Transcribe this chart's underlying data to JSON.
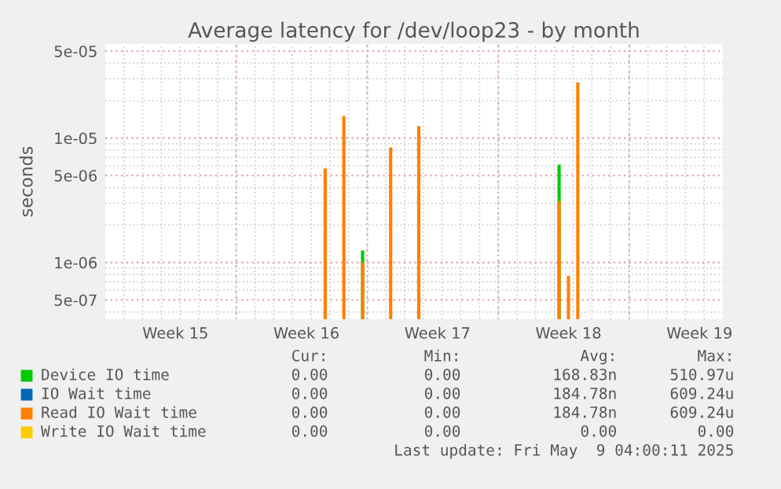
{
  "chart_data": {
    "type": "bar",
    "title": "Average latency for /dev/loop23 - by month",
    "ylabel": "seconds",
    "categories": [
      null,
      null,
      null,
      null,
      null,
      null,
      null,
      "Week 15",
      null,
      null,
      null,
      null,
      null,
      null,
      null,
      null,
      null,
      null,
      null,
      null,
      null,
      "Week 16",
      null,
      null,
      null,
      null,
      null,
      null,
      null,
      null,
      null,
      null,
      null,
      null,
      null,
      "Week 17",
      null,
      null,
      null,
      null,
      null,
      null,
      null,
      null,
      null,
      null,
      null,
      null,
      null,
      "Week 18",
      null,
      null,
      null,
      null,
      null,
      null,
      null,
      null,
      null,
      null,
      null,
      null,
      null,
      "Week 19",
      null,
      null
    ],
    "series": [
      {
        "name": "Device IO time",
        "color": "#00cc00",
        "values": [
          null,
          null,
          null,
          null,
          null,
          null,
          null,
          null,
          null,
          null,
          null,
          null,
          null,
          null,
          null,
          null,
          null,
          null,
          null,
          null,
          null,
          null,
          null,
          null,
          null,
          null,
          null,
          1.25e-06,
          null,
          null,
          null,
          null,
          null,
          null,
          null,
          null,
          null,
          null,
          null,
          null,
          null,
          null,
          null,
          null,
          null,
          null,
          null,
          null,
          6.1e-06,
          null,
          null,
          null,
          null,
          null,
          null,
          null,
          null,
          null,
          null,
          null,
          null,
          null,
          null,
          null,
          null,
          null
        ]
      },
      {
        "name": "IO Wait time",
        "color": "#0066b3",
        "values": [
          null,
          null,
          null,
          null,
          null,
          null,
          null,
          null,
          null,
          null,
          null,
          null,
          null,
          null,
          null,
          null,
          null,
          null,
          null,
          null,
          null,
          null,
          null,
          null,
          null,
          null,
          null,
          null,
          null,
          null,
          null,
          null,
          null,
          null,
          null,
          null,
          null,
          null,
          null,
          null,
          null,
          null,
          null,
          null,
          null,
          null,
          null,
          null,
          null,
          null,
          null,
          null,
          null,
          null,
          null,
          null,
          null,
          null,
          null,
          null,
          null,
          null,
          null,
          null,
          null,
          null
        ]
      },
      {
        "name": "Read IO Wait time",
        "color": "#ff8000",
        "values": [
          null,
          null,
          null,
          null,
          null,
          null,
          null,
          null,
          null,
          null,
          null,
          null,
          null,
          null,
          null,
          null,
          null,
          null,
          null,
          null,
          null,
          null,
          null,
          5.7e-06,
          null,
          1.5e-05,
          null,
          1e-06,
          null,
          null,
          8.4e-06,
          null,
          null,
          1.25e-05,
          null,
          null,
          null,
          null,
          null,
          null,
          null,
          null,
          null,
          null,
          null,
          null,
          null,
          null,
          3.1e-06,
          7.8e-07,
          2.8e-05,
          null,
          null,
          null,
          null,
          null,
          null,
          null,
          null,
          null,
          null,
          null,
          null,
          null,
          null,
          null
        ]
      },
      {
        "name": "Write IO Wait time",
        "color": "#ffcc00",
        "values": [
          null,
          null,
          null,
          null,
          null,
          null,
          null,
          null,
          null,
          null,
          null,
          null,
          null,
          null,
          null,
          null,
          null,
          null,
          null,
          null,
          null,
          null,
          null,
          null,
          null,
          null,
          null,
          null,
          null,
          null,
          null,
          null,
          null,
          null,
          null,
          null,
          null,
          null,
          null,
          null,
          null,
          null,
          null,
          null,
          null,
          null,
          null,
          null,
          null,
          null,
          null,
          null,
          null,
          null,
          null,
          null,
          null,
          null,
          null,
          null,
          null,
          null,
          null,
          null,
          null,
          null
        ]
      }
    ],
    "log": "y",
    "ylim": [
      3.5e-07,
      5.7e-05
    ],
    "yticks": [
      {
        "value": 5e-07,
        "label": "5e-07"
      },
      {
        "value": 1e-06,
        "label": "1e-06"
      },
      {
        "value": 5e-06,
        "label": "5e-06"
      },
      {
        "value": 1e-05,
        "label": "1e-05"
      },
      {
        "value": 5e-05,
        "label": "5e-05"
      }
    ],
    "grid": true,
    "legend": "bottom",
    "annotations": [
      "Cur:",
      "Min:",
      "Avg:",
      "Max:",
      "0.00",
      "0.00",
      "168.83n",
      "510.97u",
      "0.00",
      "0.00",
      "184.78n",
      "609.24u",
      "0.00",
      "0.00",
      "184.78n",
      "609.24u",
      "0.00",
      "0.00",
      "0.00",
      "0.00",
      "Last update: Fri May  9 04:00:11 2025"
    ]
  }
}
